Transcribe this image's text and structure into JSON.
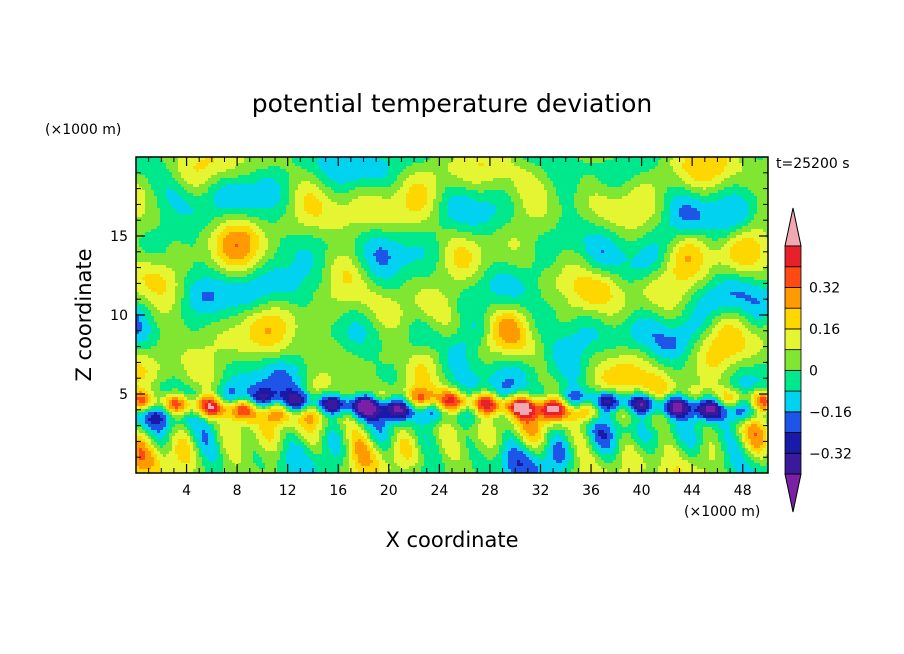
{
  "chart_data": {
    "type": "heatmap",
    "title": "potential temperature deviation",
    "xlabel": "X coordinate",
    "ylabel": "Z coordinate",
    "x_unit": "(×1000 m)",
    "y_unit": "(×1000 m)",
    "time_label": "t=25200 s",
    "xlim": [
      0,
      50
    ],
    "ylim": [
      0,
      20
    ],
    "x_ticks": [
      4,
      8,
      12,
      16,
      20,
      24,
      28,
      32,
      36,
      40,
      44,
      48
    ],
    "y_ticks": [
      5,
      10,
      15
    ],
    "colorbar": {
      "levels": [
        -0.48,
        -0.4,
        -0.32,
        -0.24,
        -0.16,
        -0.08,
        0,
        0.08,
        0.16,
        0.24,
        0.32,
        0.4,
        0.48
      ],
      "labels": [
        {
          "value": 0.32,
          "text": "0.32"
        },
        {
          "value": 0.16,
          "text": "0.16"
        },
        {
          "value": 0,
          "text": "0"
        },
        {
          "value": -0.16,
          "text": "−0.16"
        },
        {
          "value": -0.32,
          "text": "−0.32"
        }
      ],
      "colors": [
        "#7a1fa6",
        "#3a1a9a",
        "#1a1aa8",
        "#1e55e8",
        "#00d2f0",
        "#00e88c",
        "#80e632",
        "#e6f532",
        "#ffd700",
        "#ff9a00",
        "#ff4a14",
        "#e8202a",
        "#f2a8b0"
      ]
    },
    "grid": false
  }
}
